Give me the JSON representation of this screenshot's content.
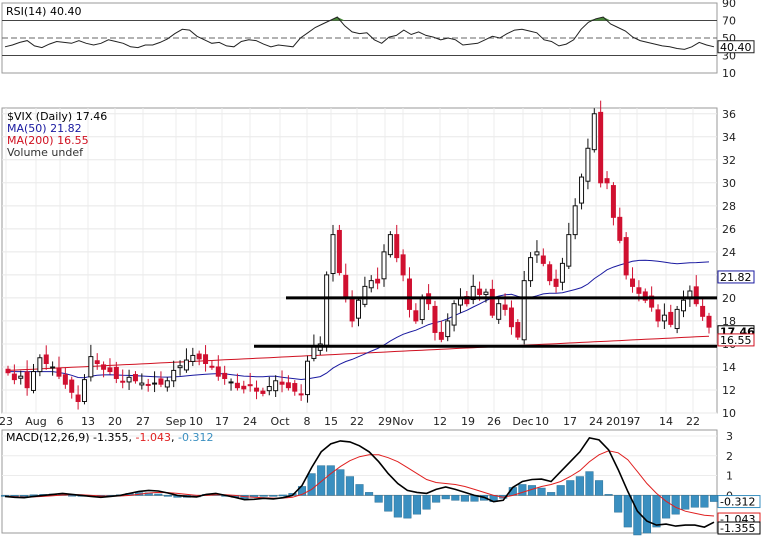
{
  "chart_data": [
    {
      "panel": "rsi",
      "type": "line",
      "label": "RSI(14) 40.40",
      "current": "40.40",
      "yticks": [
        "90",
        "70",
        "50",
        "30",
        "10"
      ],
      "ylim": [
        10,
        90
      ],
      "overbought": 70,
      "oversold": 30,
      "midline": 50,
      "values": [
        40,
        42,
        45,
        47,
        41,
        39,
        43,
        46,
        45,
        44,
        47,
        44,
        42,
        44,
        48,
        46,
        44,
        40,
        39,
        42,
        42,
        45,
        49,
        55,
        60,
        59,
        52,
        48,
        44,
        45,
        41,
        40,
        46,
        48,
        47,
        43,
        40,
        42,
        41,
        40,
        50,
        56,
        62,
        66,
        70,
        74,
        64,
        57,
        55,
        56,
        48,
        44,
        51,
        53,
        59,
        54,
        57,
        53,
        51,
        48,
        50,
        48,
        42,
        43,
        44,
        48,
        52,
        50,
        55,
        59,
        60,
        58,
        56,
        48,
        46,
        41,
        43,
        48,
        60,
        68,
        72,
        74,
        66,
        62,
        58,
        51,
        47,
        45,
        43,
        41,
        40,
        38,
        37,
        40,
        45,
        42,
        40
      ]
    },
    {
      "panel": "price",
      "type": "candlestick",
      "symbol": "$VIX (Daily) 17.46",
      "ma50_label": "MA(50) 21.82",
      "ma200_label": "MA(200) 16.55",
      "volume_label": "Volume undef",
      "last": "17.46",
      "ma50_last": "21.82",
      "ma200_last": "16.55",
      "yticks": [
        "36",
        "34",
        "32",
        "30",
        "28",
        "26",
        "24",
        "22",
        "20",
        "18",
        "16",
        "14",
        "12",
        "10"
      ],
      "ylim": [
        10,
        36.5
      ],
      "xticks": [
        "23",
        "Aug",
        "6",
        "13",
        "20",
        "27",
        "Sep",
        "10",
        "17",
        "24",
        "Oct",
        "8",
        "15",
        "22",
        "29",
        "Nov",
        "12",
        "19",
        "26",
        "Dec",
        "10",
        "17",
        "24",
        "2019",
        "7",
        "14",
        "22"
      ],
      "horizontal_lines": [
        20.0,
        15.8
      ],
      "candles_close": [
        13.5,
        12.9,
        13.2,
        12.2,
        13.6,
        14.8,
        14.3,
        14.0,
        13.2,
        12.5,
        11.8,
        11.0,
        12.9,
        14.9,
        14.3,
        13.8,
        13.6,
        13.0,
        12.7,
        13.1,
        12.8,
        12.6,
        12.4,
        12.6,
        12.5,
        12.8,
        13.7,
        14.1,
        14.6,
        15.0,
        14.7,
        14.3,
        14.0,
        13.2,
        13.0,
        12.7,
        12.2,
        12.1,
        12.4,
        11.9,
        11.7,
        12.3,
        12.8,
        12.5,
        12.2,
        11.9,
        11.6,
        14.5,
        15.8,
        16.0,
        22.0,
        25.5,
        22.2,
        20.0,
        18.0,
        19.8,
        21.0,
        21.5,
        21.3,
        24.0,
        25.5,
        23.5,
        22.0,
        19.0,
        18.0,
        20.0,
        19.5,
        17.0,
        16.4,
        18.0,
        19.5,
        20.0,
        19.5,
        21.0,
        20.3,
        20.5,
        18.5,
        19.5,
        19.0,
        17.5,
        16.6,
        21.5,
        23.5,
        24.0,
        23.0,
        21.5,
        21.0,
        23.0,
        25.5,
        28.0,
        30.5,
        33.0,
        36.0,
        30.0,
        30.0,
        27.0,
        25.0,
        22.0,
        21.0,
        20.4,
        19.8,
        19.2,
        18.0,
        18.5,
        17.7,
        19.0,
        19.8,
        20.6,
        19.5,
        18.4,
        17.46
      ]
    },
    {
      "panel": "macd",
      "type": "line",
      "label": "MACD(12,26,9) -1.355, -1.043, -0.312",
      "macd_value": "-1.355",
      "signal_value": "-1.043",
      "hist_value": "-0.312",
      "yticks": [
        "3",
        "2",
        "1",
        "0"
      ],
      "ylim": [
        -1.9,
        3.3
      ],
      "series": [
        {
          "name": "MACD",
          "color": "#000000",
          "values": [
            -0.05,
            -0.1,
            -0.12,
            -0.05,
            0.0,
            0.05,
            0.1,
            0.05,
            0.0,
            -0.05,
            -0.1,
            -0.05,
            0.0,
            0.1,
            0.2,
            0.25,
            0.22,
            0.12,
            0.0,
            -0.05,
            -0.08,
            0.05,
            0.1,
            0.0,
            -0.1,
            -0.22,
            -0.2,
            -0.15,
            -0.18,
            -0.12,
            0.0,
            0.5,
            1.4,
            2.2,
            2.6,
            2.75,
            2.7,
            2.5,
            2.2,
            1.7,
            1.1,
            0.6,
            0.25,
            0.15,
            0.1,
            0.3,
            0.42,
            0.3,
            0.15,
            0.0,
            -0.1,
            -0.32,
            -0.25,
            0.4,
            0.7,
            0.8,
            0.82,
            0.7,
            1.2,
            1.7,
            2.2,
            2.9,
            2.8,
            2.3,
            1.3,
            0.2,
            -0.8,
            -1.3,
            -1.5,
            -1.45,
            -1.55,
            -1.5,
            -1.5,
            -1.6,
            -1.355
          ]
        },
        {
          "name": "Signal",
          "color": "#e02020",
          "values": [
            -0.05,
            -0.07,
            -0.09,
            -0.08,
            -0.05,
            -0.02,
            0.02,
            0.04,
            0.03,
            0.0,
            -0.03,
            -0.04,
            -0.03,
            0.0,
            0.06,
            0.12,
            0.15,
            0.14,
            0.1,
            0.05,
            0.0,
            0.0,
            0.03,
            0.03,
            0.0,
            -0.06,
            -0.1,
            -0.12,
            -0.14,
            -0.14,
            -0.1,
            0.05,
            0.3,
            0.7,
            1.1,
            1.45,
            1.75,
            1.95,
            2.05,
            2.05,
            1.9,
            1.7,
            1.4,
            1.1,
            0.8,
            0.65,
            0.6,
            0.55,
            0.45,
            0.3,
            0.15,
            0.0,
            -0.1,
            0.0,
            0.15,
            0.3,
            0.45,
            0.55,
            0.7,
            0.95,
            1.25,
            1.7,
            2.05,
            2.25,
            2.15,
            1.8,
            1.2,
            0.6,
            0.1,
            -0.3,
            -0.6,
            -0.8,
            -0.9,
            -1.0,
            -1.043
          ]
        }
      ],
      "histogram_color": "#3a8fc0",
      "last_values": [
        "-0.312",
        "-1.043",
        "-1.355"
      ]
    }
  ]
}
